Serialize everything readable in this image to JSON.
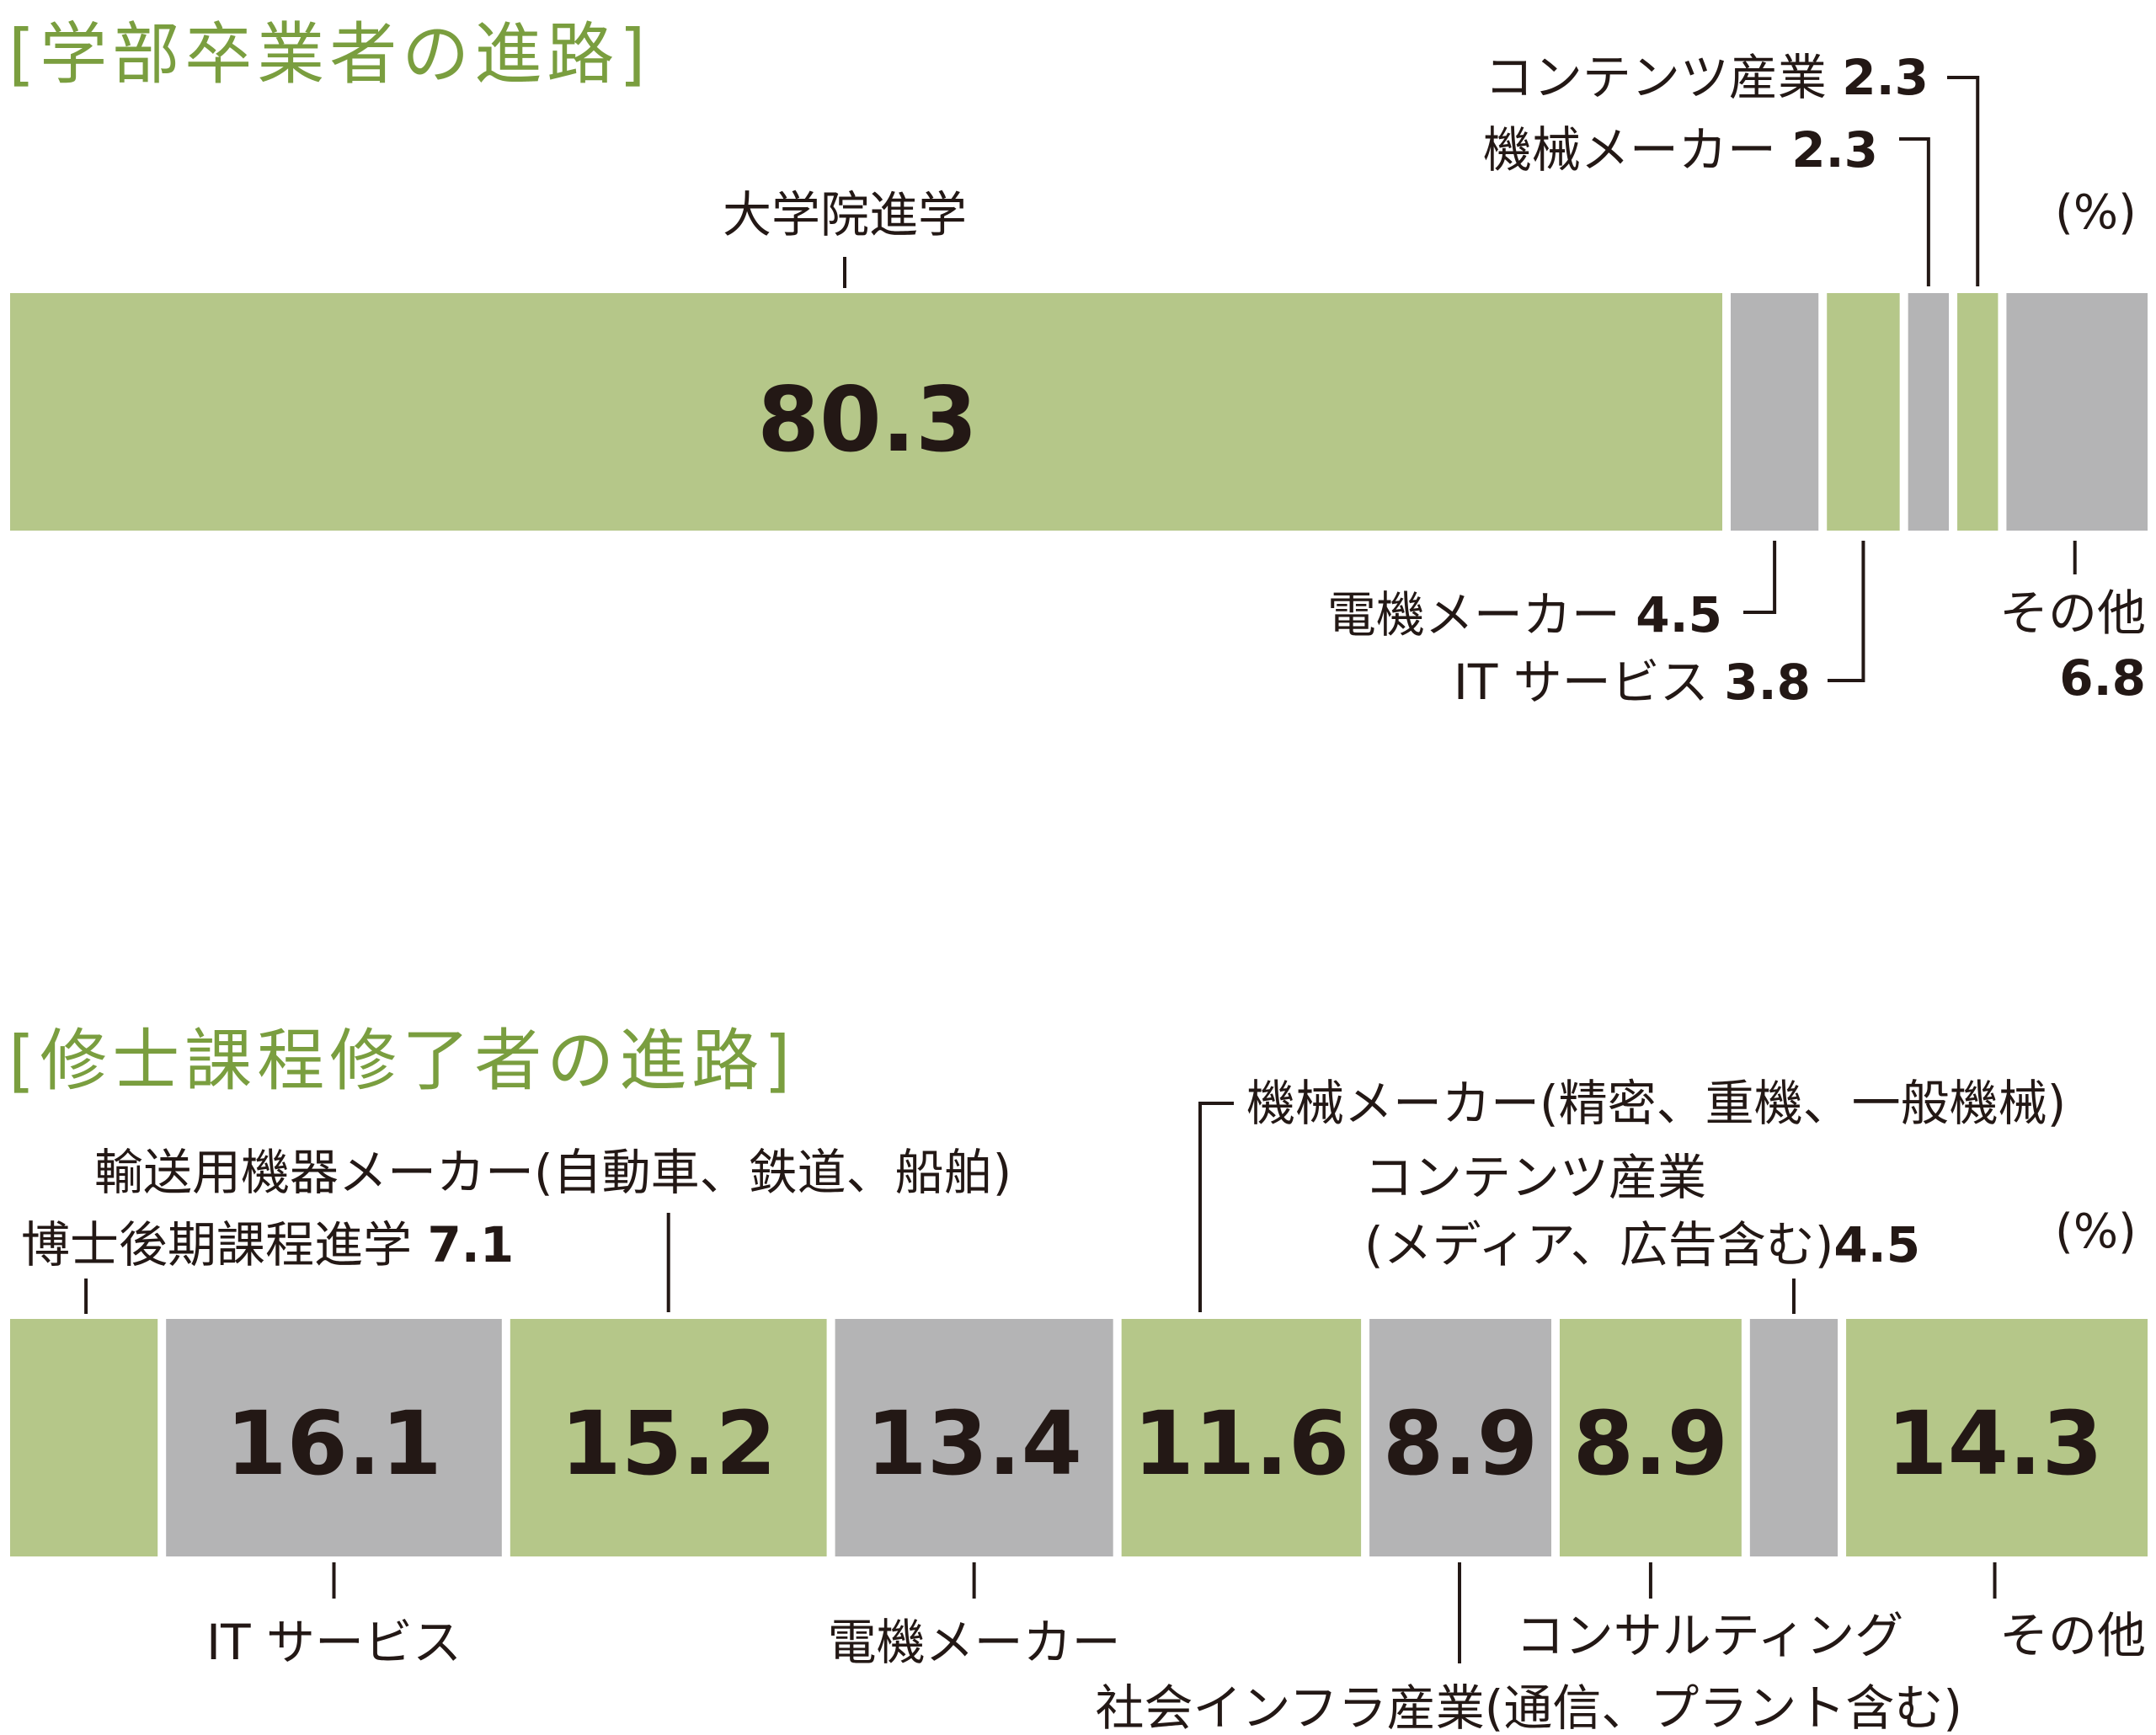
{
  "chart_data": [
    {
      "type": "bar",
      "stacked": true,
      "orientation": "horizontal",
      "title": "[学部卒業者の進路]",
      "unit": "(%)",
      "xlim": [
        0,
        100
      ],
      "segments": [
        {
          "name": "大学院進学",
          "value": 80.3,
          "value_text": "80.3",
          "color": "#b5c789"
        },
        {
          "name": "電機メーカー",
          "value": 4.5,
          "value_text": "4.5",
          "color": "#b4b4b5"
        },
        {
          "name": "IT サービス",
          "value": 3.8,
          "value_text": "3.8",
          "color": "#b5c789"
        },
        {
          "name": "機械メーカー",
          "value": 2.3,
          "value_text": "2.3",
          "color": "#b4b4b5"
        },
        {
          "name": "コンテンツ産業",
          "value": 2.3,
          "value_text": "2.3",
          "color": "#b5c789"
        },
        {
          "name": "その他",
          "value": 6.8,
          "value_text": "6.8",
          "color": "#b4b4b5"
        }
      ]
    },
    {
      "type": "bar",
      "stacked": true,
      "orientation": "horizontal",
      "title": "[修士課程修了者の進路]",
      "unit": "(%)",
      "xlim": [
        0,
        100
      ],
      "segments": [
        {
          "name": "博士後期課程進学",
          "value": 7.1,
          "value_text": "7.1",
          "color": "#b5c789"
        },
        {
          "name": "IT サービス",
          "value": 16.1,
          "value_text": "16.1",
          "color": "#b4b4b5"
        },
        {
          "name": "輸送用機器メーカー(自動車、鉄道、船舶)",
          "value": 15.2,
          "value_text": "15.2",
          "color": "#b5c789"
        },
        {
          "name": "電機メーカー",
          "value": 13.4,
          "value_text": "13.4",
          "color": "#b4b4b5"
        },
        {
          "name": "機械メーカー(精密、重機、一般機械)",
          "value": 11.6,
          "value_text": "11.6",
          "color": "#b5c789"
        },
        {
          "name": "社会インフラ産業(通信、プラント含む)",
          "value": 8.9,
          "value_text": "8.9",
          "color": "#b4b4b5"
        },
        {
          "name": "コンサルティング",
          "value": 8.9,
          "value_text": "8.9",
          "color": "#b5c789"
        },
        {
          "name": "コンテンツ産業(メディア、広告含む)",
          "value": 4.5,
          "value_text": "4.5",
          "color": "#b4b4b5"
        },
        {
          "name": "その他",
          "value": 14.3,
          "value_text": "14.3",
          "color": "#b5c789"
        }
      ],
      "callout_lines": {
        "博士後期課程進学": [
          "博士後期課程進学"
        ],
        "輸送用機器メーカー(自動車、鉄道、船舶)": [
          "輸送用機器メーカー(自動車、鉄道、船舶)"
        ],
        "機械メーカー(精密、重機、一般機械)": [
          "機械メーカー(精密、重機、一般機械)"
        ],
        "コンテンツ産業(メディア、広告含む)": [
          "コンテンツ産業",
          "(メディア、広告含む)"
        ]
      }
    }
  ]
}
